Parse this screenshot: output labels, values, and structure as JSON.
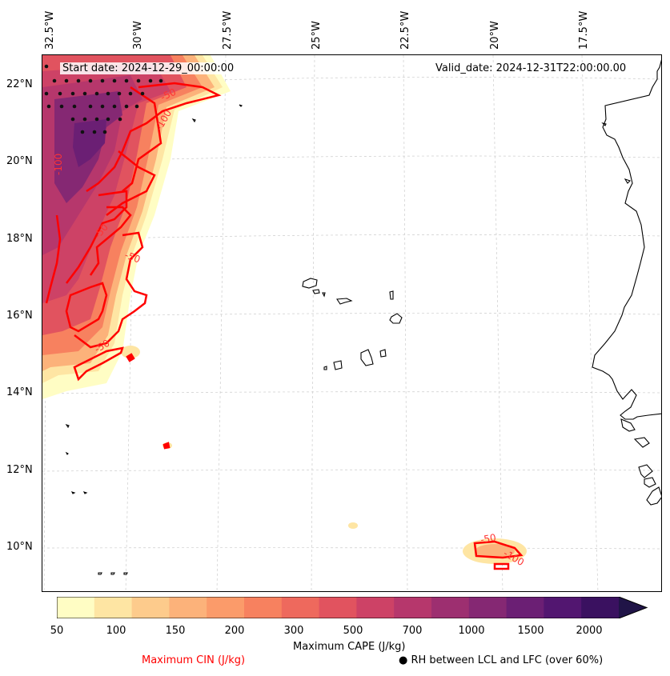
{
  "header": {
    "start_date": "Start date: 2024-12-29_00:00:00",
    "valid_date": "Valid_date: 2024-12-31T22:00:00.00"
  },
  "axes": {
    "lon_labels": [
      "32.5°W",
      "30°W",
      "27.5°W",
      "25°W",
      "22.5°W",
      "20°W",
      "17.5°W"
    ],
    "lat_labels": [
      "22°N",
      "20°N",
      "18°N",
      "16°N",
      "14°N",
      "12°N",
      "10°N"
    ]
  },
  "colorbar": {
    "label": "Maximum CAPE (J/kg)",
    "ticks": [
      "50",
      "100",
      "150",
      "200",
      "300",
      "500",
      "700",
      "1000",
      "1500",
      "2000"
    ],
    "colors": [
      "#fffdc4",
      "#fee5a3",
      "#fdcb8c",
      "#fcb27a",
      "#fb9b6a",
      "#f7815f",
      "#ee695d",
      "#e1535f",
      "#cd4266",
      "#b6376c",
      "#9d2f70",
      "#852873",
      "#6b1f74",
      "#521670",
      "#3a1160",
      "#201447"
    ],
    "extend": "max"
  },
  "legend": {
    "cin_label": "Maximum CIN (J/kg)",
    "cin_color": "#ff0000",
    "rh_marker": "●",
    "rh_label": "RH between LCL and LFC (over 60%)"
  },
  "contour_labels": [
    "-50",
    "-100",
    "-100",
    "-50",
    "-50",
    "-50",
    "-100",
    "-50"
  ],
  "map_colors": {
    "cin_contour": "#ff0000",
    "coastline": "#000000",
    "gridline": "#cccccc"
  }
}
